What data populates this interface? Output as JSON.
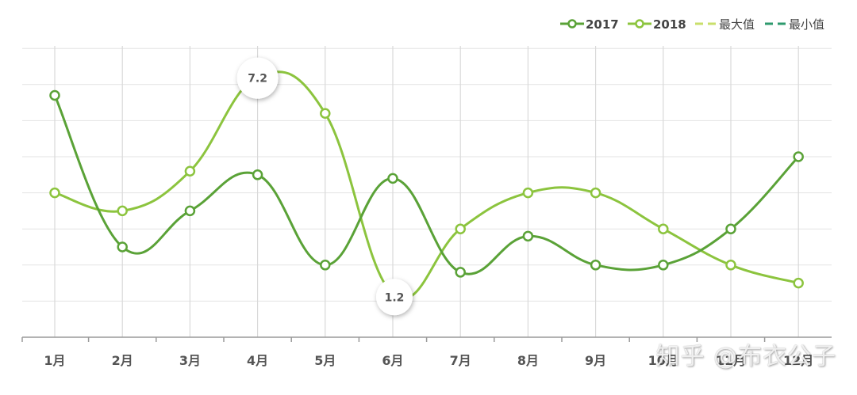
{
  "chart_data": {
    "type": "line",
    "categories": [
      "1月",
      "2月",
      "3月",
      "4月",
      "5月",
      "6月",
      "7月",
      "8月",
      "9月",
      "10月",
      "11月",
      "12月"
    ],
    "series": [
      {
        "name": "2017",
        "color": "#5aa237",
        "values": [
          6.7,
          2.5,
          3.5,
          4.5,
          2.0,
          4.4,
          1.8,
          2.8,
          2.0,
          2.0,
          3.0,
          5.0
        ]
      },
      {
        "name": "2018",
        "color": "#8cc43e",
        "values": [
          4.0,
          3.5,
          4.6,
          7.2,
          6.2,
          1.2,
          3.0,
          4.0,
          4.0,
          3.0,
          2.0,
          1.5
        ]
      }
    ],
    "ylim": [
      0,
      8
    ],
    "legend": [
      {
        "label": "2017",
        "style": "line-circle",
        "color": "#5aa237"
      },
      {
        "label": "2018",
        "style": "line-circle",
        "color": "#8cc43e"
      },
      {
        "label": "最大值",
        "style": "dashed",
        "color": "#c9df6b"
      },
      {
        "label": "最小值",
        "style": "dashed",
        "color": "#2e9a6e"
      }
    ],
    "annotations": [
      {
        "type": "max",
        "series": "2018",
        "category": "4月",
        "label": "7.2"
      },
      {
        "type": "min",
        "series": "2018",
        "category": "6月",
        "label": "1.2"
      }
    ],
    "grid": true,
    "legend_position": "top-right"
  },
  "watermark": "知乎 @布衣公子"
}
